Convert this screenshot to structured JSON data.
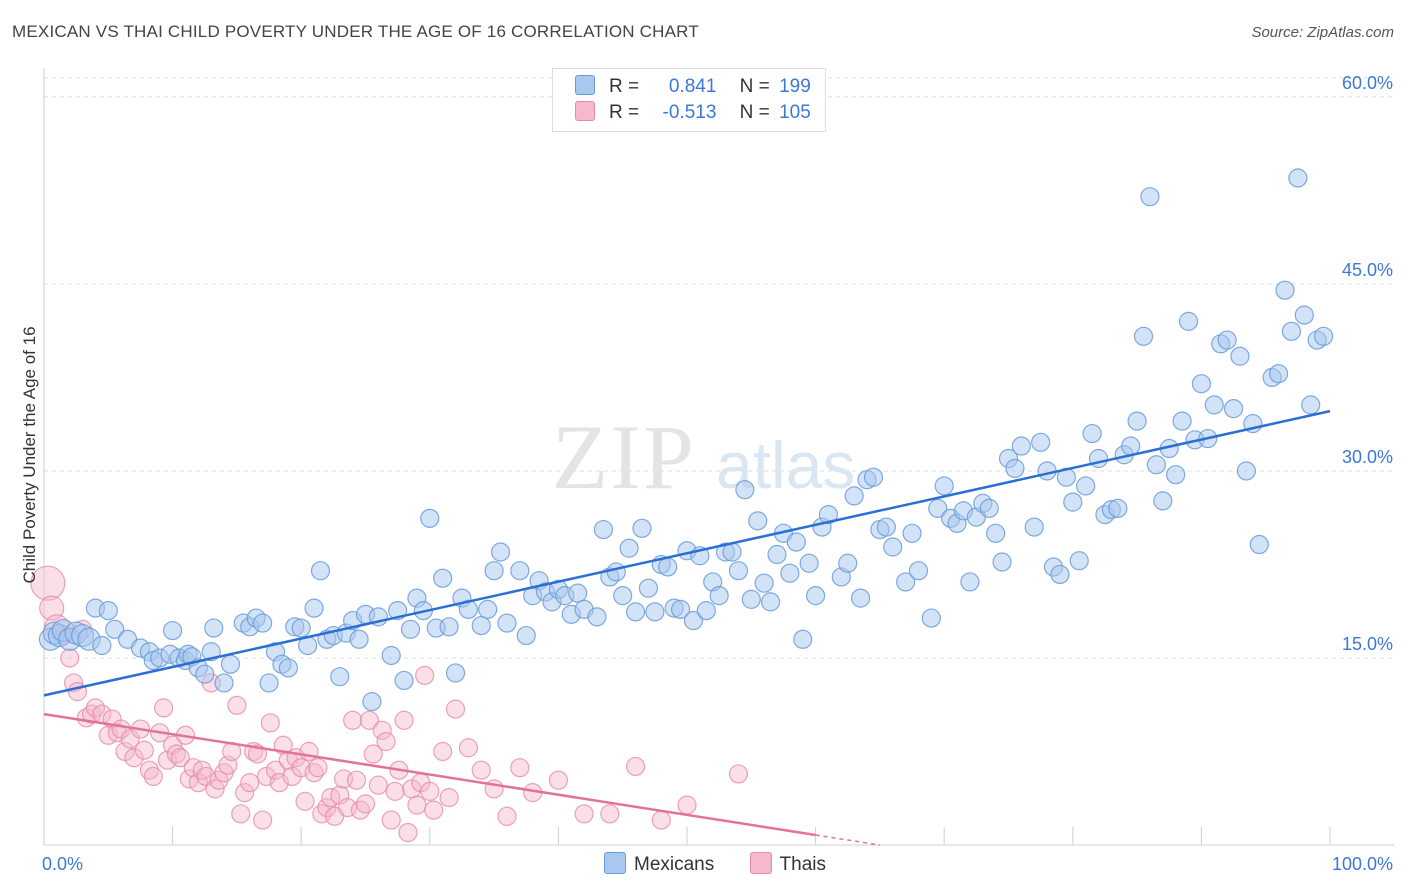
{
  "title": "MEXICAN VS THAI CHILD POVERTY UNDER THE AGE OF 16 CORRELATION CHART",
  "source": "Source: ZipAtlas.com",
  "watermark": {
    "zip": "ZIP",
    "atlas": "atlas"
  },
  "legend": {
    "r_label": "R =",
    "n_label": "N =",
    "rows": [
      {
        "r": "0.841",
        "n": "199",
        "color": "#a8c8f0"
      },
      {
        "r": "-0.513",
        "n": "105",
        "color": "#f5b8cc"
      }
    ]
  },
  "colors": {
    "mexican_fill": "#a8c8f0",
    "mexican_line": "#2a6fd4",
    "thai_fill": "#f5b8cc",
    "thai_line": "#e3729a",
    "tick_label": "#3b78d8",
    "grid": "#dcdcdc"
  },
  "chart_data": {
    "type": "scatter",
    "title": "MEXICAN VS THAI CHILD POVERTY UNDER THE AGE OF 16 CORRELATION CHART",
    "xlabel": "",
    "ylabel": "Child Poverty Under the Age of 16",
    "xlim": [
      0,
      100
    ],
    "ylim": [
      0,
      62
    ],
    "x_tick_labels": [
      "0.0%",
      "100.0%"
    ],
    "y_ticks": [
      15,
      30,
      45,
      60
    ],
    "y_tick_labels": [
      "15.0%",
      "30.0%",
      "45.0%",
      "60.0%"
    ],
    "grid": true,
    "legend_position": "top-center",
    "series": [
      {
        "name": "Mexicans",
        "trend": {
          "x": [
            0,
            100
          ],
          "y": [
            12.0,
            34.8
          ]
        },
        "points": [
          [
            0.5,
            16.5
          ],
          [
            0.8,
            17.0
          ],
          [
            1.2,
            16.8
          ],
          [
            1.5,
            17.2
          ],
          [
            2.0,
            16.5
          ],
          [
            2.5,
            17.0
          ],
          [
            3.0,
            16.8
          ],
          [
            3.5,
            16.5
          ],
          [
            4.0,
            19.0
          ],
          [
            5.0,
            18.8
          ],
          [
            4.5,
            16.0
          ],
          [
            5.5,
            17.3
          ],
          [
            6.5,
            16.5
          ],
          [
            7.5,
            15.8
          ],
          [
            8.2,
            15.5
          ],
          [
            8.5,
            14.8
          ],
          [
            9.0,
            15.0
          ],
          [
            9.8,
            15.3
          ],
          [
            10.0,
            17.2
          ],
          [
            10.5,
            15.0
          ],
          [
            11.0,
            14.8
          ],
          [
            11.2,
            15.3
          ],
          [
            11.5,
            15.1
          ],
          [
            12.0,
            14.2
          ],
          [
            12.5,
            13.7
          ],
          [
            13.0,
            15.5
          ],
          [
            13.2,
            17.4
          ],
          [
            14.0,
            13.0
          ],
          [
            14.5,
            14.5
          ],
          [
            15.5,
            17.8
          ],
          [
            16.0,
            17.5
          ],
          [
            16.5,
            18.2
          ],
          [
            17.0,
            17.8
          ],
          [
            17.5,
            13.0
          ],
          [
            18.0,
            15.5
          ],
          [
            18.5,
            14.5
          ],
          [
            19.0,
            14.2
          ],
          [
            19.5,
            17.5
          ],
          [
            20.0,
            17.4
          ],
          [
            20.5,
            16.0
          ],
          [
            21.0,
            19.0
          ],
          [
            21.5,
            22.0
          ],
          [
            22.0,
            16.5
          ],
          [
            22.5,
            16.8
          ],
          [
            23.0,
            13.5
          ],
          [
            23.5,
            17.0
          ],
          [
            24.0,
            18.0
          ],
          [
            24.5,
            16.5
          ],
          [
            25.0,
            18.5
          ],
          [
            25.5,
            11.5
          ],
          [
            26.0,
            18.3
          ],
          [
            27.0,
            15.2
          ],
          [
            27.5,
            18.8
          ],
          [
            28.0,
            13.2
          ],
          [
            28.5,
            17.3
          ],
          [
            29.0,
            19.8
          ],
          [
            29.5,
            18.8
          ],
          [
            30.0,
            26.2
          ],
          [
            30.5,
            17.4
          ],
          [
            31.0,
            21.4
          ],
          [
            31.5,
            17.5
          ],
          [
            32.0,
            13.8
          ],
          [
            32.5,
            19.8
          ],
          [
            33.0,
            18.9
          ],
          [
            34.0,
            17.6
          ],
          [
            34.5,
            18.9
          ],
          [
            35.0,
            22.0
          ],
          [
            35.5,
            23.5
          ],
          [
            36.0,
            17.8
          ],
          [
            37.0,
            22.0
          ],
          [
            37.5,
            16.8
          ],
          [
            38.0,
            20.0
          ],
          [
            38.5,
            21.2
          ],
          [
            39.0,
            20.3
          ],
          [
            39.5,
            19.5
          ],
          [
            40.0,
            20.5
          ],
          [
            40.5,
            20.0
          ],
          [
            41.0,
            18.5
          ],
          [
            41.5,
            20.2
          ],
          [
            42.0,
            18.9
          ],
          [
            43.0,
            18.3
          ],
          [
            43.5,
            25.3
          ],
          [
            44.0,
            21.5
          ],
          [
            44.5,
            21.9
          ],
          [
            45.0,
            20.0
          ],
          [
            45.5,
            23.8
          ],
          [
            46.0,
            18.7
          ],
          [
            46.5,
            25.4
          ],
          [
            47.0,
            20.6
          ],
          [
            47.5,
            18.7
          ],
          [
            48.0,
            22.5
          ],
          [
            48.5,
            22.3
          ],
          [
            49.0,
            19.0
          ],
          [
            49.5,
            18.9
          ],
          [
            50.0,
            23.6
          ],
          [
            50.5,
            18.0
          ],
          [
            51.0,
            23.2
          ],
          [
            51.5,
            18.8
          ],
          [
            52.0,
            21.1
          ],
          [
            52.5,
            20.0
          ],
          [
            53.0,
            23.5
          ],
          [
            53.5,
            23.5
          ],
          [
            54.0,
            22.0
          ],
          [
            54.5,
            28.5
          ],
          [
            55.0,
            19.7
          ],
          [
            55.5,
            26.0
          ],
          [
            56.0,
            21.0
          ],
          [
            56.5,
            19.5
          ],
          [
            57.0,
            23.3
          ],
          [
            57.5,
            25.0
          ],
          [
            58.0,
            21.8
          ],
          [
            58.5,
            24.3
          ],
          [
            59.0,
            16.5
          ],
          [
            59.5,
            22.6
          ],
          [
            60.0,
            20.0
          ],
          [
            60.5,
            25.5
          ],
          [
            61.0,
            26.5
          ],
          [
            62.0,
            21.5
          ],
          [
            62.5,
            22.6
          ],
          [
            63.0,
            28.0
          ],
          [
            63.5,
            19.8
          ],
          [
            64.0,
            29.3
          ],
          [
            64.5,
            29.5
          ],
          [
            65.0,
            25.3
          ],
          [
            65.5,
            25.5
          ],
          [
            66.0,
            23.9
          ],
          [
            67.0,
            21.1
          ],
          [
            67.5,
            25.0
          ],
          [
            68.0,
            22.0
          ],
          [
            69.0,
            18.2
          ],
          [
            69.5,
            27.0
          ],
          [
            70.0,
            28.8
          ],
          [
            70.5,
            26.2
          ],
          [
            71.0,
            25.8
          ],
          [
            71.5,
            26.8
          ],
          [
            72.0,
            21.1
          ],
          [
            72.5,
            26.3
          ],
          [
            73.0,
            27.4
          ],
          [
            73.5,
            27.0
          ],
          [
            74.0,
            25.0
          ],
          [
            74.5,
            22.7
          ],
          [
            75.0,
            31.0
          ],
          [
            75.5,
            30.2
          ],
          [
            76.0,
            32.0
          ],
          [
            77.0,
            25.5
          ],
          [
            77.5,
            32.3
          ],
          [
            78.0,
            30.0
          ],
          [
            78.5,
            22.3
          ],
          [
            79.0,
            21.7
          ],
          [
            79.5,
            29.5
          ],
          [
            80.0,
            27.5
          ],
          [
            80.5,
            22.8
          ],
          [
            81.0,
            28.8
          ],
          [
            81.5,
            33.0
          ],
          [
            82.0,
            31.0
          ],
          [
            82.5,
            26.5
          ],
          [
            83.0,
            26.9
          ],
          [
            83.5,
            27.0
          ],
          [
            84.0,
            31.3
          ],
          [
            84.5,
            32.0
          ],
          [
            85.0,
            34.0
          ],
          [
            85.5,
            40.8
          ],
          [
            86.0,
            52.0
          ],
          [
            86.5,
            30.5
          ],
          [
            87.0,
            27.6
          ],
          [
            87.5,
            31.8
          ],
          [
            88.0,
            29.7
          ],
          [
            88.5,
            34.0
          ],
          [
            89.0,
            42.0
          ],
          [
            89.5,
            32.5
          ],
          [
            90.0,
            37.0
          ],
          [
            90.5,
            32.6
          ],
          [
            91.0,
            35.3
          ],
          [
            91.5,
            40.2
          ],
          [
            92.0,
            40.5
          ],
          [
            92.5,
            35.0
          ],
          [
            93.0,
            39.2
          ],
          [
            93.5,
            30.0
          ],
          [
            94.0,
            33.8
          ],
          [
            94.5,
            24.1
          ],
          [
            95.5,
            37.5
          ],
          [
            96.0,
            37.8
          ],
          [
            96.5,
            44.5
          ],
          [
            97.0,
            41.2
          ],
          [
            97.5,
            53.5
          ],
          [
            98.0,
            42.5
          ],
          [
            98.5,
            35.3
          ],
          [
            99.0,
            40.5
          ],
          [
            99.5,
            40.8
          ]
        ]
      },
      {
        "name": "Thais",
        "trend": {
          "x": [
            0,
            60
          ],
          "y": [
            10.5,
            0.8
          ]
        },
        "trend_dashed": {
          "x": [
            60,
            65
          ],
          "y": [
            0.8,
            0.0
          ]
        },
        "points": [
          [
            0.3,
            21.0
          ],
          [
            0.6,
            19.0
          ],
          [
            1.0,
            17.5
          ],
          [
            1.5,
            16.8
          ],
          [
            2.0,
            15.0
          ],
          [
            2.3,
            13.0
          ],
          [
            2.6,
            12.3
          ],
          [
            3.0,
            17.3
          ],
          [
            3.3,
            10.2
          ],
          [
            3.7,
            10.5
          ],
          [
            4.0,
            11.0
          ],
          [
            4.5,
            10.5
          ],
          [
            5.0,
            8.8
          ],
          [
            5.3,
            10.1
          ],
          [
            5.7,
            9.0
          ],
          [
            6.0,
            9.3
          ],
          [
            6.3,
            7.5
          ],
          [
            6.7,
            8.5
          ],
          [
            7.0,
            7.0
          ],
          [
            7.5,
            9.3
          ],
          [
            7.8,
            7.6
          ],
          [
            8.2,
            6.0
          ],
          [
            8.5,
            5.5
          ],
          [
            9.0,
            9.0
          ],
          [
            9.3,
            11.0
          ],
          [
            9.6,
            6.8
          ],
          [
            10.0,
            8.0
          ],
          [
            10.3,
            7.3
          ],
          [
            10.6,
            7.0
          ],
          [
            11.0,
            8.8
          ],
          [
            11.3,
            5.3
          ],
          [
            11.6,
            6.2
          ],
          [
            12.0,
            5.0
          ],
          [
            12.3,
            6.0
          ],
          [
            12.6,
            5.5
          ],
          [
            13.0,
            13.0
          ],
          [
            13.3,
            4.5
          ],
          [
            13.6,
            5.2
          ],
          [
            14.0,
            5.8
          ],
          [
            14.3,
            6.4
          ],
          [
            14.6,
            7.5
          ],
          [
            15.0,
            11.2
          ],
          [
            15.3,
            2.5
          ],
          [
            15.6,
            4.2
          ],
          [
            16.0,
            5.0
          ],
          [
            16.3,
            7.5
          ],
          [
            16.6,
            7.3
          ],
          [
            17.0,
            2.0
          ],
          [
            17.3,
            5.5
          ],
          [
            17.6,
            9.8
          ],
          [
            18.0,
            6.0
          ],
          [
            18.3,
            5.0
          ],
          [
            18.6,
            8.0
          ],
          [
            19.0,
            6.8
          ],
          [
            19.3,
            5.5
          ],
          [
            19.6,
            7.0
          ],
          [
            20.0,
            6.2
          ],
          [
            20.3,
            3.5
          ],
          [
            20.6,
            7.5
          ],
          [
            21.0,
            5.8
          ],
          [
            21.3,
            6.2
          ],
          [
            21.6,
            2.5
          ],
          [
            22.0,
            3.0
          ],
          [
            22.3,
            3.8
          ],
          [
            22.6,
            2.3
          ],
          [
            23.0,
            4.0
          ],
          [
            23.3,
            5.3
          ],
          [
            23.6,
            3.0
          ],
          [
            24.0,
            10.0
          ],
          [
            24.3,
            5.2
          ],
          [
            24.6,
            2.8
          ],
          [
            25.0,
            3.3
          ],
          [
            25.3,
            10.0
          ],
          [
            25.6,
            7.3
          ],
          [
            26.0,
            4.8
          ],
          [
            26.3,
            9.2
          ],
          [
            26.6,
            8.3
          ],
          [
            27.0,
            2.0
          ],
          [
            27.3,
            4.3
          ],
          [
            27.6,
            6.0
          ],
          [
            28.0,
            10.0
          ],
          [
            28.3,
            1.0
          ],
          [
            28.6,
            4.5
          ],
          [
            29.0,
            3.2
          ],
          [
            29.3,
            5.0
          ],
          [
            29.6,
            13.6
          ],
          [
            30.0,
            4.3
          ],
          [
            30.3,
            2.8
          ],
          [
            31.0,
            7.5
          ],
          [
            31.5,
            3.8
          ],
          [
            32.0,
            10.9
          ],
          [
            33.0,
            7.8
          ],
          [
            34.0,
            6.0
          ],
          [
            35.0,
            4.5
          ],
          [
            36.0,
            2.3
          ],
          [
            37.0,
            6.2
          ],
          [
            38.0,
            4.2
          ],
          [
            40.0,
            5.2
          ],
          [
            42.0,
            2.5
          ],
          [
            44.0,
            2.5
          ],
          [
            46.0,
            6.3
          ],
          [
            48.0,
            2.0
          ],
          [
            50.0,
            3.2
          ],
          [
            54.0,
            5.7
          ]
        ]
      }
    ]
  },
  "bottom_legend": [
    {
      "label": "Mexicans",
      "color": "#a8c8f0"
    },
    {
      "label": "Thais",
      "color": "#f5b8cc"
    }
  ]
}
